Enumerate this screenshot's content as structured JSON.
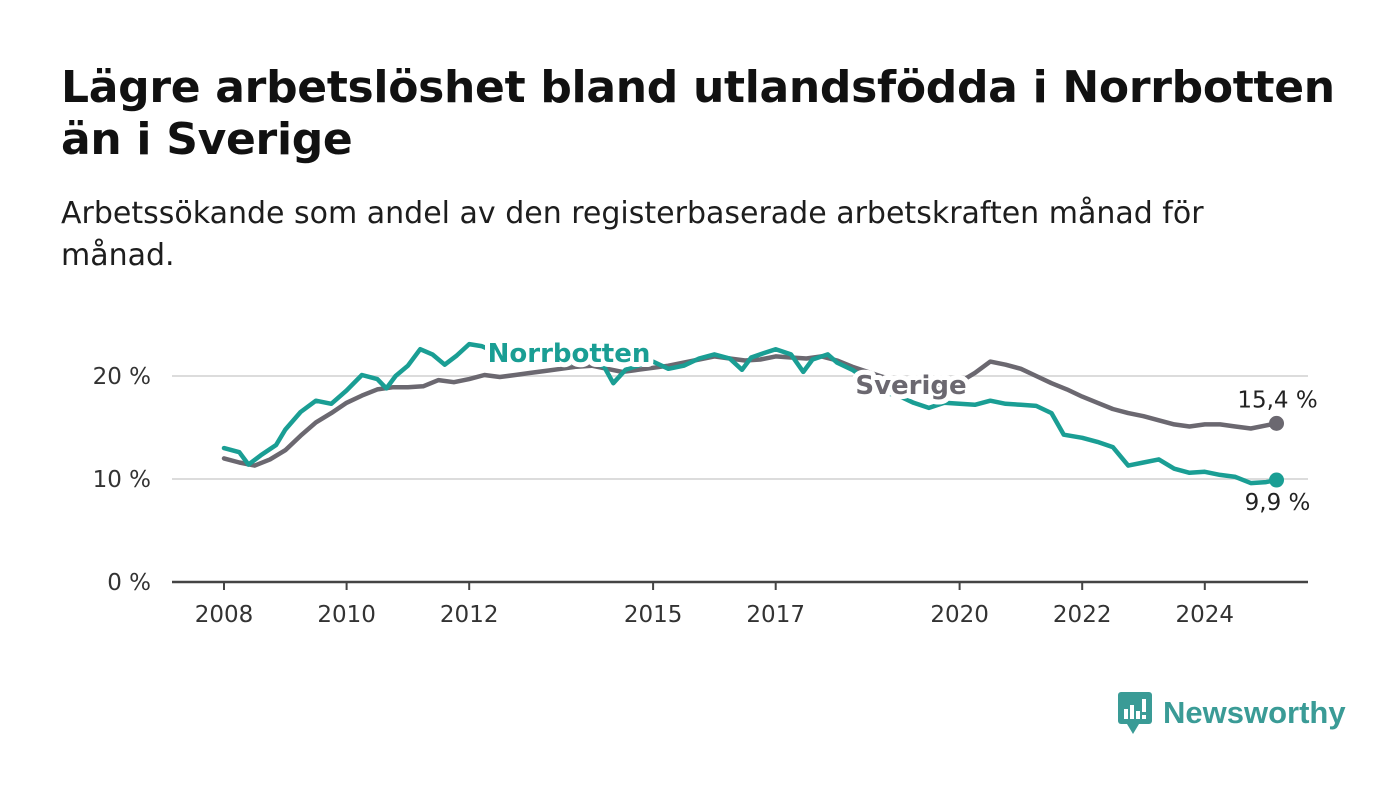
{
  "title": "Lägre arbetslöshet bland utlandsfödda i Norrbotten än i Sverige",
  "subtitle": "Arbetssökande som andel av den registerbaserade arbetskraften månad för månad.",
  "brand": {
    "name": "Newsworthy",
    "icon": "chart-bubble-icon",
    "color": "#3a9b96"
  },
  "chart_data": {
    "type": "line",
    "xlabel": "",
    "ylabel": "",
    "ylim": [
      0,
      22
    ],
    "xlim": [
      2008.0,
      2025.3
    ],
    "x_ticks": [
      2008,
      2010,
      2012,
      2015,
      2017,
      2020,
      2022,
      2024
    ],
    "x_tick_labels": [
      "2008",
      "2010",
      "2012",
      "2015",
      "2017",
      "2020",
      "2022",
      "2024"
    ],
    "y_ticks": [
      0,
      10,
      20
    ],
    "y_tick_labels": [
      "0 %",
      "10 %",
      "20 %"
    ],
    "grid": true,
    "legend": "inline labels",
    "series": [
      {
        "name": "Sverige",
        "color": "#6b6870",
        "end_label": "15,4 %",
        "points": [
          [
            2008.0,
            12.0
          ],
          [
            2008.25,
            11.6
          ],
          [
            2008.5,
            11.3
          ],
          [
            2008.75,
            11.9
          ],
          [
            2009.0,
            12.8
          ],
          [
            2009.25,
            14.2
          ],
          [
            2009.5,
            15.5
          ],
          [
            2009.75,
            16.4
          ],
          [
            2010.0,
            17.4
          ],
          [
            2010.25,
            18.1
          ],
          [
            2010.5,
            18.7
          ],
          [
            2010.75,
            18.9
          ],
          [
            2011.0,
            18.9
          ],
          [
            2011.25,
            19.0
          ],
          [
            2011.5,
            19.6
          ],
          [
            2011.75,
            19.4
          ],
          [
            2012.0,
            19.7
          ],
          [
            2012.25,
            20.1
          ],
          [
            2012.5,
            19.9
          ],
          [
            2012.75,
            20.1
          ],
          [
            2013.0,
            20.3
          ],
          [
            2013.25,
            20.5
          ],
          [
            2013.5,
            20.7
          ],
          [
            2013.75,
            20.9
          ],
          [
            2014.0,
            21.0
          ],
          [
            2014.25,
            20.7
          ],
          [
            2014.5,
            20.4
          ],
          [
            2014.75,
            20.6
          ],
          [
            2015.0,
            20.8
          ],
          [
            2015.25,
            21.0
          ],
          [
            2015.5,
            21.3
          ],
          [
            2015.75,
            21.6
          ],
          [
            2016.0,
            21.9
          ],
          [
            2016.25,
            21.7
          ],
          [
            2016.5,
            21.5
          ],
          [
            2016.75,
            21.6
          ],
          [
            2017.0,
            21.9
          ],
          [
            2017.25,
            21.8
          ],
          [
            2017.5,
            21.7
          ],
          [
            2017.75,
            21.9
          ],
          [
            2018.0,
            21.5
          ],
          [
            2018.25,
            20.9
          ],
          [
            2018.5,
            20.4
          ],
          [
            2018.75,
            19.9
          ],
          [
            2019.0,
            19.6
          ],
          [
            2019.25,
            19.3
          ],
          [
            2019.5,
            19.2
          ],
          [
            2019.75,
            19.2
          ],
          [
            2020.0,
            19.4
          ],
          [
            2020.25,
            20.3
          ],
          [
            2020.5,
            21.4
          ],
          [
            2020.75,
            21.1
          ],
          [
            2021.0,
            20.7
          ],
          [
            2021.25,
            20.0
          ],
          [
            2021.5,
            19.3
          ],
          [
            2021.75,
            18.7
          ],
          [
            2022.0,
            18.0
          ],
          [
            2022.25,
            17.4
          ],
          [
            2022.5,
            16.8
          ],
          [
            2022.75,
            16.4
          ],
          [
            2023.0,
            16.1
          ],
          [
            2023.25,
            15.7
          ],
          [
            2023.5,
            15.3
          ],
          [
            2023.75,
            15.1
          ],
          [
            2024.0,
            15.3
          ],
          [
            2024.25,
            15.3
          ],
          [
            2024.5,
            15.1
          ],
          [
            2024.75,
            14.9
          ],
          [
            2025.0,
            15.2
          ],
          [
            2025.17,
            15.4
          ]
        ]
      },
      {
        "name": "Norrbotten",
        "color": "#1a9e94",
        "end_label": "9,9 %",
        "points": [
          [
            2008.0,
            13.0
          ],
          [
            2008.25,
            12.6
          ],
          [
            2008.4,
            11.4
          ],
          [
            2008.6,
            12.3
          ],
          [
            2008.85,
            13.3
          ],
          [
            2009.0,
            14.8
          ],
          [
            2009.25,
            16.5
          ],
          [
            2009.5,
            17.6
          ],
          [
            2009.75,
            17.3
          ],
          [
            2010.0,
            18.6
          ],
          [
            2010.25,
            20.1
          ],
          [
            2010.5,
            19.7
          ],
          [
            2010.65,
            18.8
          ],
          [
            2010.8,
            20.0
          ],
          [
            2011.0,
            21.0
          ],
          [
            2011.2,
            22.6
          ],
          [
            2011.4,
            22.1
          ],
          [
            2011.6,
            21.1
          ],
          [
            2011.8,
            22.0
          ],
          [
            2012.0,
            23.1
          ],
          [
            2012.2,
            22.9
          ],
          [
            2012.4,
            22.4
          ],
          [
            2012.6,
            22.0
          ],
          [
            2012.8,
            22.8
          ],
          [
            2013.0,
            22.5
          ],
          [
            2013.3,
            21.7
          ],
          [
            2013.6,
            21.2
          ],
          [
            2013.9,
            21.6
          ],
          [
            2014.2,
            20.9
          ],
          [
            2014.35,
            19.3
          ],
          [
            2014.55,
            20.6
          ],
          [
            2014.8,
            21.1
          ],
          [
            2015.0,
            21.4
          ],
          [
            2015.25,
            20.7
          ],
          [
            2015.5,
            21.0
          ],
          [
            2015.75,
            21.7
          ],
          [
            2016.0,
            22.1
          ],
          [
            2016.25,
            21.7
          ],
          [
            2016.45,
            20.6
          ],
          [
            2016.6,
            21.8
          ],
          [
            2016.8,
            22.2
          ],
          [
            2017.0,
            22.6
          ],
          [
            2017.25,
            22.1
          ],
          [
            2017.45,
            20.4
          ],
          [
            2017.6,
            21.6
          ],
          [
            2017.85,
            22.1
          ],
          [
            2018.0,
            21.3
          ],
          [
            2018.25,
            20.6
          ],
          [
            2018.5,
            19.6
          ],
          [
            2018.75,
            18.4
          ],
          [
            2019.0,
            18.1
          ],
          [
            2019.25,
            17.4
          ],
          [
            2019.5,
            16.9
          ],
          [
            2019.75,
            17.4
          ],
          [
            2020.0,
            17.3
          ],
          [
            2020.25,
            17.2
          ],
          [
            2020.5,
            17.6
          ],
          [
            2020.75,
            17.3
          ],
          [
            2021.0,
            17.2
          ],
          [
            2021.25,
            17.1
          ],
          [
            2021.5,
            16.4
          ],
          [
            2021.7,
            14.3
          ],
          [
            2022.0,
            14.0
          ],
          [
            2022.25,
            13.6
          ],
          [
            2022.5,
            13.1
          ],
          [
            2022.75,
            11.3
          ],
          [
            2023.0,
            11.6
          ],
          [
            2023.25,
            11.9
          ],
          [
            2023.5,
            11.0
          ],
          [
            2023.75,
            10.6
          ],
          [
            2024.0,
            10.7
          ],
          [
            2024.25,
            10.4
          ],
          [
            2024.5,
            10.2
          ],
          [
            2024.75,
            9.6
          ],
          [
            2025.0,
            9.7
          ],
          [
            2025.17,
            9.9
          ]
        ]
      }
    ]
  }
}
